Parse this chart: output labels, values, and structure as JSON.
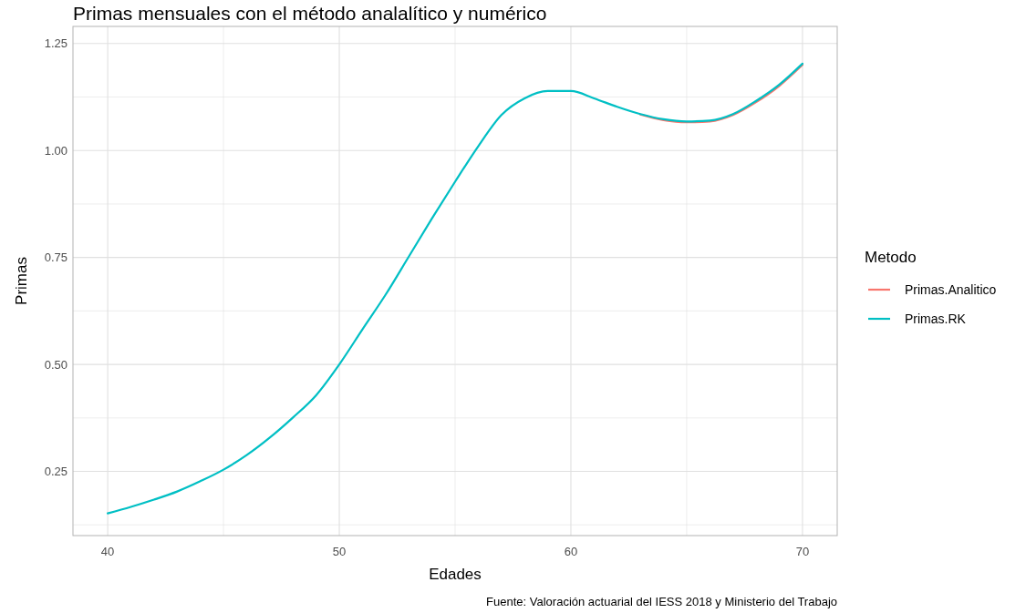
{
  "chart_data": {
    "type": "line",
    "title": "Primas mensuales con el método analalítico y numérico",
    "xlabel": "Edades",
    "ylabel": "Primas",
    "legend_title": "Metodo",
    "annotations": [
      "Fuente: Valoración actuarial del IESS 2018 y Ministerio del Trabajo"
    ],
    "x": [
      40,
      41,
      42,
      43,
      44,
      45,
      46,
      47,
      48,
      49,
      50,
      51,
      52,
      53,
      54,
      55,
      56,
      57,
      58,
      59,
      60,
      61,
      62,
      63,
      64,
      65,
      66,
      67,
      68,
      69,
      70
    ],
    "series": [
      {
        "name": "Primas.Analitico",
        "color": "#f8766d",
        "values": [
          null,
          null,
          null,
          null,
          null,
          null,
          null,
          null,
          null,
          null,
          null,
          null,
          null,
          null,
          null,
          null,
          null,
          null,
          null,
          null,
          null,
          null,
          null,
          1.084,
          1.071,
          1.066,
          1.068,
          1.083,
          1.113,
          1.151,
          1.2
        ]
      },
      {
        "name": "Primas.RK",
        "color": "#00bfc4",
        "values": [
          0.152,
          0.167,
          0.184,
          0.203,
          0.227,
          0.254,
          0.288,
          0.329,
          0.376,
          0.428,
          0.5,
          0.582,
          0.663,
          0.752,
          0.841,
          0.927,
          1.01,
          1.083,
          1.122,
          1.139,
          1.139,
          1.122,
          1.102,
          1.085,
          1.073,
          1.068,
          1.07,
          1.085,
          1.116,
          1.154,
          1.203
        ]
      }
    ],
    "xlim": [
      38.5,
      71.5
    ],
    "xticks": [
      40,
      {
        "value": 45,
        "label": null
      },
      50,
      {
        "value": 55,
        "label": null
      },
      60,
      {
        "value": 65,
        "label": null
      },
      70
    ],
    "ylim": [
      0.1,
      1.29
    ],
    "yticks": [
      {
        "value": 0.125,
        "label": null
      },
      {
        "value": 0.25,
        "label": "0.25"
      },
      {
        "value": 0.375,
        "label": null
      },
      {
        "value": 0.5,
        "label": "0.50"
      },
      {
        "value": 0.625,
        "label": null
      },
      {
        "value": 0.75,
        "label": "0.75"
      },
      {
        "value": 0.875,
        "label": null
      },
      {
        "value": 1,
        "label": "1.00"
      },
      {
        "value": 1.125,
        "label": null
      },
      {
        "value": 1.25,
        "label": "1.25"
      }
    ],
    "grid": true,
    "legend": "right",
    "line_style": "solid"
  }
}
